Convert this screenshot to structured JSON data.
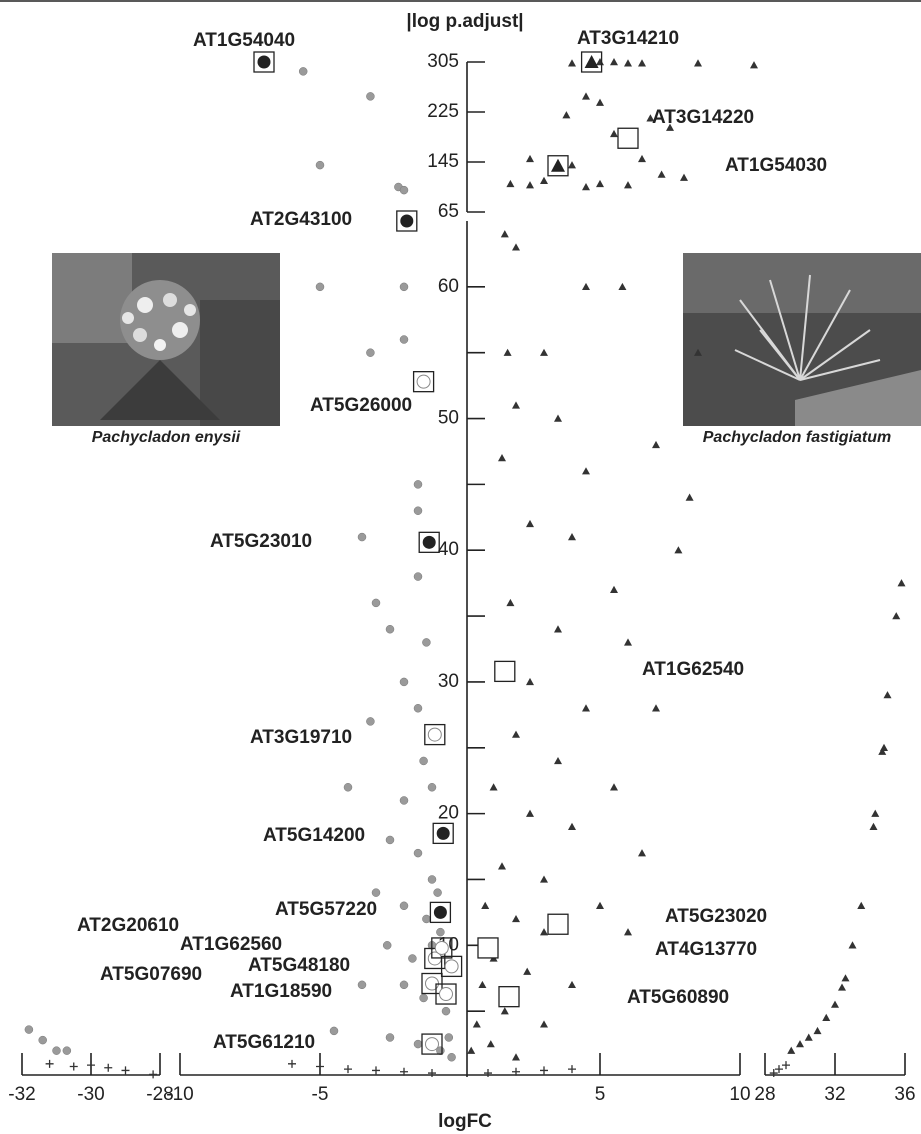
{
  "chart_data": {
    "type": "scatter",
    "y_label": "|log p.adjust|",
    "x_label": "logFC",
    "x_segments": [
      {
        "xlim": [
          -32,
          -28
        ],
        "xticks": [
          -32,
          -30,
          -28
        ]
      },
      {
        "xlim": [
          -10,
          10
        ],
        "xticks": [
          -10,
          -5,
          5,
          10
        ]
      },
      {
        "xlim": [
          28,
          36
        ],
        "xticks": [
          28,
          32,
          36
        ]
      }
    ],
    "y_segments": [
      {
        "ylim": [
          0,
          65
        ],
        "yticks": [
          10,
          20,
          30,
          40,
          50,
          60
        ],
        "yminor": [
          5,
          15,
          25,
          35,
          45,
          55
        ]
      },
      {
        "ylim": [
          65,
          305
        ],
        "yticks": [
          65,
          145,
          225,
          305
        ]
      }
    ],
    "series": [
      {
        "marker": "circle",
        "color": "#9a9a9a",
        "x": [
          -5.6,
          -3.2,
          -5,
          -2.2,
          -2,
          -5,
          -2,
          -3.2,
          -2,
          -1.5,
          -1.5,
          -3.5,
          -3,
          -1.5,
          -2.5,
          -2,
          -1.2,
          -3.2,
          -1.5,
          -4,
          -1.3,
          -2,
          -1,
          -2.5,
          -1.5,
          -1,
          -3,
          -2,
          -1.2,
          -0.8,
          -2.6,
          -1.7,
          -1,
          -0.7,
          -3.5,
          -2,
          -1.3,
          -0.5,
          -4.5,
          -2.5,
          -1.5,
          -0.7,
          -0.4,
          -0.3,
          -31.8,
          -31.4,
          -31,
          -30.7
        ],
        "y": [
          290,
          250,
          140,
          105,
          100,
          60,
          60,
          55,
          56,
          45,
          43,
          41,
          36,
          38,
          34,
          30,
          33,
          27,
          28,
          22,
          24,
          21,
          22,
          18,
          17,
          15,
          14,
          13,
          12,
          14,
          10,
          9,
          10,
          11,
          7,
          7,
          6,
          5,
          3.5,
          3,
          2.5,
          2,
          3,
          1.5,
          3.6,
          2.8,
          2,
          2
        ]
      },
      {
        "marker": "triangle",
        "color": "#333333",
        "x": [
          5,
          5.5,
          6,
          8.5,
          10.5,
          4,
          6.5,
          4.5,
          5,
          3.8,
          6.8,
          7.5,
          5.5,
          2.5,
          4,
          6.5,
          8,
          3,
          5,
          2.5,
          1.8,
          7.2,
          6,
          4.5,
          1.6,
          2,
          4.5,
          5.8,
          3,
          1.7,
          8.5,
          2,
          3.5,
          7,
          1.5,
          4.5,
          8.2,
          2.5,
          4,
          7.8,
          5.5,
          1.8,
          3.5,
          6,
          1.5,
          2.5,
          4.5,
          7,
          2,
          3.5,
          5.5,
          1.2,
          2.5,
          4,
          6.5,
          1.5,
          3,
          5,
          0.9,
          2,
          3,
          6,
          1.2,
          2.4,
          4,
          0.8,
          1.6,
          3,
          0.6,
          1.1,
          0.4,
          2,
          35.8,
          35.5,
          35,
          34.8,
          34.7,
          34.3,
          34.2,
          33.5,
          33,
          32.6,
          32.4,
          32,
          31.5,
          31,
          30.5,
          30,
          29.5
        ],
        "y": [
          305,
          305,
          303,
          303,
          300,
          303,
          303,
          250,
          240,
          220,
          215,
          200,
          190,
          150,
          140,
          150,
          120,
          115,
          110,
          108,
          110,
          125,
          108,
          105,
          64,
          63,
          60,
          60,
          55,
          55,
          55,
          51,
          50,
          48,
          47,
          46,
          44,
          42,
          41,
          40,
          37,
          36,
          34,
          33,
          31,
          30,
          28,
          28,
          26,
          24,
          22,
          22,
          20,
          19,
          17,
          16,
          15,
          13,
          13,
          12,
          11,
          11,
          9,
          8,
          7,
          7,
          5,
          4,
          4,
          2.5,
          2,
          1.5,
          37.5,
          35,
          29,
          25,
          24.7,
          20,
          19,
          13,
          10,
          7.5,
          6.8,
          5.5,
          4.5,
          3.5,
          3,
          2.5,
          2
        ]
      },
      {
        "marker": "cross",
        "color": "#333333",
        "x": [
          -31.2,
          -30.5,
          -30,
          -29.5,
          -29,
          -28.2,
          -6,
          -5,
          -4,
          -3,
          -2,
          -1,
          1,
          2,
          3,
          4,
          28.5,
          28.8,
          29.2
        ],
        "y": [
          1,
          0.8,
          0.9,
          0.7,
          0.5,
          0.2,
          1,
          0.8,
          0.6,
          0.5,
          0.4,
          0.3,
          0.3,
          0.4,
          0.5,
          0.6,
          0.3,
          0.6,
          0.9
        ]
      }
    ],
    "genes": [
      {
        "label": "AT1G54040",
        "logFC": -7,
        "p": 305,
        "marker": "filled-circle"
      },
      {
        "label": "AT3G14210",
        "logFC": 4.7,
        "p": 305,
        "marker": "filled-triangle"
      },
      {
        "label": "AT3G14220",
        "logFC": 6,
        "p": 183,
        "marker": "open-square"
      },
      {
        "label": "AT1G54030",
        "logFC": 3.5,
        "p": 139,
        "marker": "filled-triangle"
      },
      {
        "label": "AT2G43100",
        "logFC": -1.9,
        "p": 65,
        "marker": "filled-circle"
      },
      {
        "label": "AT5G26000",
        "logFC": -1.3,
        "p": 52.8,
        "marker": "open-circle"
      },
      {
        "label": "AT5G23010",
        "logFC": -1.1,
        "p": 40.6,
        "marker": "filled-circle"
      },
      {
        "label": "AT1G62540",
        "logFC": 1.6,
        "p": 30.8,
        "marker": "open-square"
      },
      {
        "label": "AT3G19710",
        "logFC": -0.9,
        "p": 26,
        "marker": "open-circle"
      },
      {
        "label": "AT5G14200",
        "logFC": -0.6,
        "p": 18.5,
        "marker": "filled-circle"
      },
      {
        "label": "AT5G57220",
        "logFC": -0.7,
        "p": 12.5,
        "marker": "filled-circle"
      },
      {
        "label": "AT2G20610",
        "logFC": -0.9,
        "p": 9.0,
        "marker": "open-circle"
      },
      {
        "label": "AT1G62560",
        "logFC": -0.65,
        "p": 9.8,
        "marker": "open-circle"
      },
      {
        "label": "AT5G48180",
        "logFC": -0.3,
        "p": 8.4,
        "marker": "open-circle"
      },
      {
        "label": "AT5G07690",
        "logFC": -1.0,
        "p": 7.1,
        "marker": "open-circle"
      },
      {
        "label": "AT1G18590",
        "logFC": -0.5,
        "p": 6.3,
        "marker": "open-circle"
      },
      {
        "label": "AT5G61210",
        "logFC": -1.0,
        "p": 2.5,
        "marker": "open-circle"
      },
      {
        "label": "AT5G23020",
        "logFC": 3.5,
        "p": 11.6,
        "marker": "open-square"
      },
      {
        "label": "AT4G13770",
        "logFC": 1.0,
        "p": 9.8,
        "marker": "open-square"
      },
      {
        "label": "AT5G60890",
        "logFC": 1.75,
        "p": 6.1,
        "marker": "open-square"
      }
    ],
    "photos": [
      {
        "caption": "Pachycladon enysii"
      },
      {
        "caption": "Pachycladon fastigiatum"
      }
    ]
  }
}
